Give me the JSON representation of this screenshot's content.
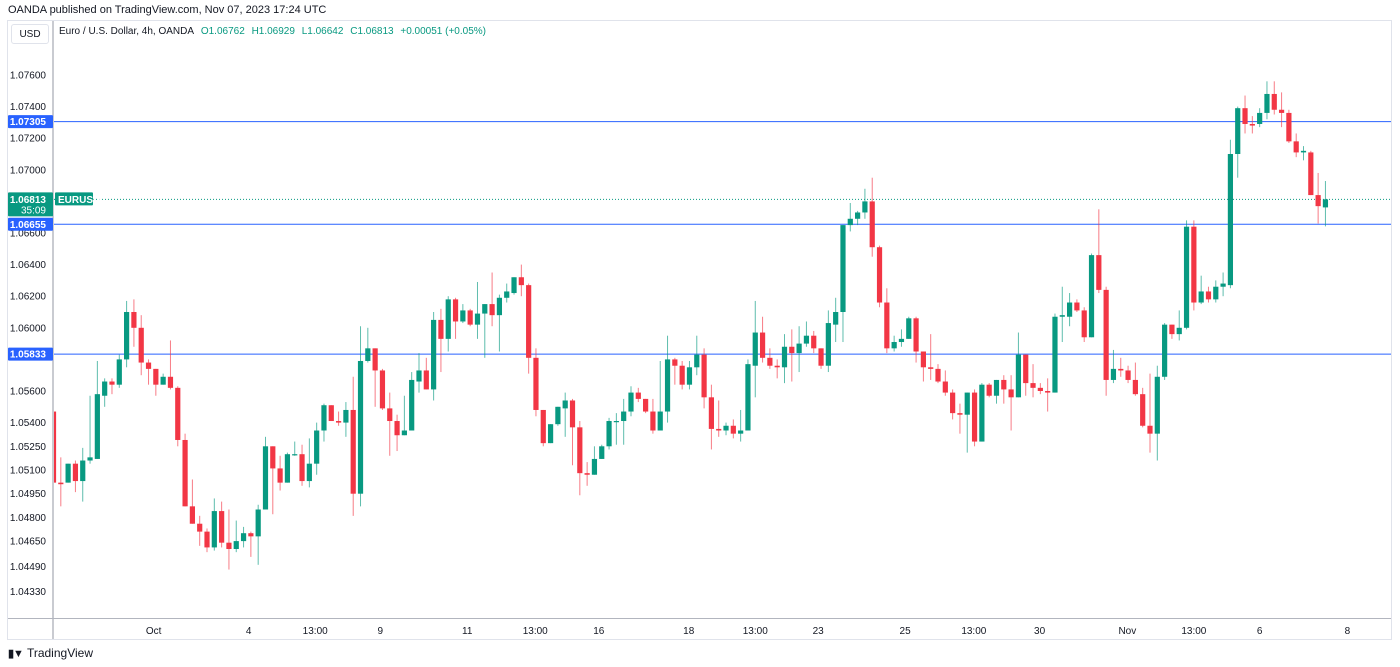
{
  "header": {
    "published": "OANDA published on TradingView.com, Nov 07, 2023 17:24 UTC",
    "currency_button": "USD",
    "symbol_title": "Euro / U.S. Dollar, 4h, OANDA",
    "open": "O1.06762",
    "high": "H1.06929",
    "low": "L1.06642",
    "close": "C1.06813",
    "change": "+0.00051 (+0.05%)"
  },
  "footer": {
    "brand": "TradingView",
    "logo_mark": "17"
  },
  "colors": {
    "up": "#089981",
    "down": "#F23645",
    "level_line": "#2962FF",
    "label_bg": "#2962FF",
    "price_label_bg": "#089981"
  },
  "chart_data": {
    "type": "candlestick",
    "symbol": "EURUSD",
    "interval": "4h",
    "ylim": [
      1.042,
      1.0775
    ],
    "y_ticks": [
      "1.07600",
      "1.07400",
      "1.07200",
      "1.07000",
      "1.06600",
      "1.06400",
      "1.06200",
      "1.06000",
      "1.05600",
      "1.05400",
      "1.05250",
      "1.05100",
      "1.04950",
      "1.04800",
      "1.04650",
      "1.04490",
      "1.04330"
    ],
    "x_ticks": [
      {
        "label": "Oct",
        "at": 13.7
      },
      {
        "label": "4",
        "at": 26.7
      },
      {
        "label": "13:00",
        "at": 35.8
      },
      {
        "label": "9",
        "at": 44.7
      },
      {
        "label": "11",
        "at": 56.6
      },
      {
        "label": "13:00",
        "at": 65.9
      },
      {
        "label": "16",
        "at": 74.6
      },
      {
        "label": "18",
        "at": 86.9
      },
      {
        "label": "13:00",
        "at": 96
      },
      {
        "label": "23",
        "at": 104.6
      },
      {
        "label": "25",
        "at": 116.5
      },
      {
        "label": "13:00",
        "at": 125.9
      },
      {
        "label": "30",
        "at": 134.9
      },
      {
        "label": "Nov",
        "at": 146.9
      },
      {
        "label": "13:00",
        "at": 156
      },
      {
        "label": "6",
        "at": 165
      },
      {
        "label": "8",
        "at": 177
      }
    ],
    "horizontal_levels": [
      {
        "label": "1.07305",
        "value": 1.07305
      },
      {
        "label": "1.06655",
        "value": 1.06655
      },
      {
        "label": "1.05833",
        "value": 1.05833
      }
    ],
    "last_price": {
      "label": "1.06813",
      "value": 1.06813,
      "countdown": "35:09",
      "tag": "EURUSD"
    },
    "ohlc": [
      [
        1.0547,
        1.0547,
        1.0502,
        1.0502
      ],
      [
        1.0502,
        1.0518,
        1.0487,
        1.0501
      ],
      [
        1.0502,
        1.0514,
        1.0502,
        1.0514
      ],
      [
        1.0514,
        1.0516,
        1.0496,
        1.0503
      ],
      [
        1.0503,
        1.0524,
        1.049,
        1.0516
      ],
      [
        1.0516,
        1.0557,
        1.0514,
        1.0518
      ],
      [
        1.0517,
        1.0579,
        1.0517,
        1.0558
      ],
      [
        1.0557,
        1.0568,
        1.055,
        1.0566
      ],
      [
        1.0566,
        1.0568,
        1.0558,
        1.0564
      ],
      [
        1.0564,
        1.0583,
        1.0562,
        1.058
      ],
      [
        1.058,
        1.0617,
        1.0575,
        1.061
      ],
      [
        1.061,
        1.0618,
        1.0588,
        1.06
      ],
      [
        1.06,
        1.0608,
        1.057,
        1.0578
      ],
      [
        1.0578,
        1.058,
        1.0564,
        1.0574
      ],
      [
        1.0574,
        1.0574,
        1.0557,
        1.0564
      ],
      [
        1.0564,
        1.0571,
        1.0564,
        1.0569
      ],
      [
        1.0569,
        1.0592,
        1.0561,
        1.0562
      ],
      [
        1.0562,
        1.0563,
        1.0525,
        1.0529
      ],
      [
        1.0529,
        1.0533,
        1.0487,
        1.0487
      ],
      [
        1.0487,
        1.0504,
        1.0476,
        1.0476
      ],
      [
        1.0476,
        1.0481,
        1.0462,
        1.0471
      ],
      [
        1.0471,
        1.0473,
        1.0458,
        1.0461
      ],
      [
        1.0461,
        1.0492,
        1.0459,
        1.0484
      ],
      [
        1.0484,
        1.049,
        1.0461,
        1.0464
      ],
      [
        1.0464,
        1.0485,
        1.0447,
        1.046
      ],
      [
        1.046,
        1.0478,
        1.0458,
        1.0465
      ],
      [
        1.0465,
        1.0474,
        1.0461,
        1.047
      ],
      [
        1.047,
        1.0471,
        1.0455,
        1.0468
      ],
      [
        1.0468,
        1.0488,
        1.045,
        1.0485
      ],
      [
        1.0485,
        1.0531,
        1.0485,
        1.0525
      ],
      [
        1.0525,
        1.0525,
        1.0482,
        1.0511
      ],
      [
        1.0511,
        1.0519,
        1.0497,
        1.0502
      ],
      [
        1.0502,
        1.0521,
        1.0502,
        1.052
      ],
      [
        1.052,
        1.0528,
        1.0519,
        1.052
      ],
      [
        1.052,
        1.0526,
        1.05,
        1.0503
      ],
      [
        1.0503,
        1.053,
        1.0499,
        1.0514
      ],
      [
        1.0514,
        1.054,
        1.0507,
        1.0535
      ],
      [
        1.0535,
        1.0552,
        1.0528,
        1.0551
      ],
      [
        1.0551,
        1.0551,
        1.0541,
        1.0541
      ],
      [
        1.0541,
        1.0547,
        1.0538,
        1.054
      ],
      [
        1.054,
        1.0553,
        1.0531,
        1.0548
      ],
      [
        1.0548,
        1.0569,
        1.0481,
        1.0495
      ],
      [
        1.0495,
        1.0601,
        1.0487,
        1.0579
      ],
      [
        1.0579,
        1.06,
        1.0578,
        1.0587
      ],
      [
        1.0587,
        1.0587,
        1.055,
        1.0573
      ],
      [
        1.0573,
        1.0574,
        1.0548,
        1.0549
      ],
      [
        1.0549,
        1.0559,
        1.0519,
        1.0541
      ],
      [
        1.0541,
        1.0545,
        1.0522,
        1.0532
      ],
      [
        1.0532,
        1.0557,
        1.0532,
        1.0535
      ],
      [
        1.0535,
        1.0572,
        1.0535,
        1.0567
      ],
      [
        1.0566,
        1.0584,
        1.0559,
        1.0573
      ],
      [
        1.0573,
        1.0581,
        1.0561,
        1.0561
      ],
      [
        1.0561,
        1.061,
        1.0554,
        1.0605
      ],
      [
        1.0605,
        1.0612,
        1.0572,
        1.0593
      ],
      [
        1.0593,
        1.062,
        1.0585,
        1.0618
      ],
      [
        1.0618,
        1.0619,
        1.0593,
        1.0604
      ],
      [
        1.0604,
        1.0615,
        1.0603,
        1.0611
      ],
      [
        1.0611,
        1.0612,
        1.0601,
        1.0602
      ],
      [
        1.0602,
        1.0629,
        1.0593,
        1.0609
      ],
      [
        1.0609,
        1.0615,
        1.0581,
        1.0615
      ],
      [
        1.0615,
        1.0635,
        1.0601,
        1.0608
      ],
      [
        1.0608,
        1.0621,
        1.0585,
        1.0619
      ],
      [
        1.0619,
        1.0628,
        1.0616,
        1.0623
      ],
      [
        1.0622,
        1.0632,
        1.0621,
        1.0632
      ],
      [
        1.0632,
        1.064,
        1.062,
        1.0627
      ],
      [
        1.0627,
        1.0628,
        1.0571,
        1.0581
      ],
      [
        1.0581,
        1.0587,
        1.0544,
        1.0548
      ],
      [
        1.0548,
        1.0548,
        1.0525,
        1.0527
      ],
      [
        1.0527,
        1.0539,
        1.0527,
        1.0539
      ],
      [
        1.0539,
        1.055,
        1.0538,
        1.055
      ],
      [
        1.0549,
        1.0559,
        1.0531,
        1.0554
      ],
      [
        1.0554,
        1.0555,
        1.0513,
        1.0537
      ],
      [
        1.0537,
        1.0541,
        1.0494,
        1.0508
      ],
      [
        1.0508,
        1.0515,
        1.05,
        1.0507
      ],
      [
        1.0507,
        1.0525,
        1.0507,
        1.0517
      ],
      [
        1.0517,
        1.0526,
        1.0517,
        1.0525
      ],
      [
        1.0525,
        1.0543,
        1.0523,
        1.0541
      ],
      [
        1.0541,
        1.0546,
        1.0526,
        1.0541
      ],
      [
        1.0541,
        1.0555,
        1.0526,
        1.0547
      ],
      [
        1.0547,
        1.0563,
        1.0544,
        1.0559
      ],
      [
        1.0559,
        1.0562,
        1.0553,
        1.0555
      ],
      [
        1.0555,
        1.0555,
        1.0546,
        1.0547
      ],
      [
        1.0547,
        1.0555,
        1.0533,
        1.0535
      ],
      [
        1.0535,
        1.0579,
        1.0535,
        1.0547
      ],
      [
        1.0547,
        1.0595,
        1.054,
        1.058
      ],
      [
        1.058,
        1.0581,
        1.0564,
        1.0576
      ],
      [
        1.0576,
        1.0579,
        1.0561,
        1.0564
      ],
      [
        1.0564,
        1.0579,
        1.0561,
        1.0575
      ],
      [
        1.0575,
        1.0595,
        1.057,
        1.0583
      ],
      [
        1.0583,
        1.0587,
        1.0549,
        1.0556
      ],
      [
        1.0556,
        1.0564,
        1.0523,
        1.0536
      ],
      [
        1.0536,
        1.0554,
        1.0531,
        1.0535
      ],
      [
        1.0535,
        1.054,
        1.0532,
        1.0538
      ],
      [
        1.0538,
        1.0542,
        1.053,
        1.0533
      ],
      [
        1.0533,
        1.0548,
        1.0528,
        1.0535
      ],
      [
        1.0535,
        1.058,
        1.0535,
        1.0577
      ],
      [
        1.0576,
        1.0617,
        1.0556,
        1.0597
      ],
      [
        1.0597,
        1.0607,
        1.0578,
        1.0581
      ],
      [
        1.0581,
        1.0587,
        1.0574,
        1.0576
      ],
      [
        1.0576,
        1.058,
        1.0568,
        1.0575
      ],
      [
        1.0575,
        1.0596,
        1.0565,
        1.0588
      ],
      [
        1.0588,
        1.0599,
        1.0566,
        1.0584
      ],
      [
        1.0584,
        1.0601,
        1.0572,
        1.059
      ],
      [
        1.059,
        1.0604,
        1.0588,
        1.0595
      ],
      [
        1.0595,
        1.0598,
        1.0584,
        1.0587
      ],
      [
        1.0587,
        1.0587,
        1.0574,
        1.0576
      ],
      [
        1.0576,
        1.0611,
        1.0572,
        1.0603
      ],
      [
        1.0602,
        1.0619,
        1.0591,
        1.061
      ],
      [
        1.061,
        1.0665,
        1.0591,
        1.0665
      ],
      [
        1.0665,
        1.0679,
        1.0661,
        1.0669
      ],
      [
        1.0669,
        1.0674,
        1.0665,
        1.0673
      ],
      [
        1.0673,
        1.0688,
        1.0669,
        1.068
      ],
      [
        1.068,
        1.0695,
        1.0645,
        1.0651
      ],
      [
        1.0651,
        1.0652,
        1.0613,
        1.0616
      ],
      [
        1.0616,
        1.0625,
        1.0584,
        1.0587
      ],
      [
        1.0587,
        1.0595,
        1.0585,
        1.0591
      ],
      [
        1.0591,
        1.0599,
        1.0588,
        1.0593
      ],
      [
        1.0593,
        1.0607,
        1.0593,
        1.0606
      ],
      [
        1.0606,
        1.0607,
        1.0578,
        1.0585
      ],
      [
        1.0585,
        1.0585,
        1.0566,
        1.0575
      ],
      [
        1.0575,
        1.0596,
        1.0567,
        1.0574
      ],
      [
        1.0574,
        1.0577,
        1.0565,
        1.0566
      ],
      [
        1.0566,
        1.0573,
        1.0557,
        1.0559
      ],
      [
        1.0559,
        1.0561,
        1.0542,
        1.0546
      ],
      [
        1.0546,
        1.0552,
        1.0533,
        1.0545
      ],
      [
        1.0545,
        1.0559,
        1.0521,
        1.0559
      ],
      [
        1.0559,
        1.0561,
        1.0525,
        1.0528
      ],
      [
        1.0528,
        1.0565,
        1.0528,
        1.0564
      ],
      [
        1.0564,
        1.0565,
        1.0556,
        1.0557
      ],
      [
        1.0557,
        1.0567,
        1.0552,
        1.0567
      ],
      [
        1.0567,
        1.057,
        1.0552,
        1.0561
      ],
      [
        1.0561,
        1.057,
        1.0535,
        1.0556
      ],
      [
        1.0556,
        1.0597,
        1.0556,
        1.0583
      ],
      [
        1.0583,
        1.0583,
        1.0557,
        1.0565
      ],
      [
        1.0565,
        1.0577,
        1.0556,
        1.0562
      ],
      [
        1.0562,
        1.0565,
        1.0558,
        1.056
      ],
      [
        1.056,
        1.0568,
        1.0547,
        1.0559
      ],
      [
        1.0559,
        1.0609,
        1.0559,
        1.0607
      ],
      [
        1.0607,
        1.0626,
        1.0591,
        1.0608
      ],
      [
        1.0607,
        1.0622,
        1.0601,
        1.0616
      ],
      [
        1.0616,
        1.0618,
        1.061,
        1.0611
      ],
      [
        1.0611,
        1.0613,
        1.0591,
        1.0594
      ],
      [
        1.0594,
        1.0647,
        1.0594,
        1.0646
      ],
      [
        1.0646,
        1.0675,
        1.0622,
        1.0624
      ],
      [
        1.0624,
        1.0626,
        1.0557,
        1.0567
      ],
      [
        1.0567,
        1.0586,
        1.0565,
        1.0574
      ],
      [
        1.0574,
        1.0581,
        1.0569,
        1.0573
      ],
      [
        1.0573,
        1.0576,
        1.0565,
        1.0567
      ],
      [
        1.0567,
        1.0578,
        1.0557,
        1.0558
      ],
      [
        1.0558,
        1.0562,
        1.0537,
        1.0538
      ],
      [
        1.0538,
        1.0571,
        1.0521,
        1.0533
      ],
      [
        1.0533,
        1.0576,
        1.0516,
        1.0569
      ],
      [
        1.0569,
        1.0603,
        1.0567,
        1.0602
      ],
      [
        1.0602,
        1.0602,
        1.0593,
        1.0596
      ],
      [
        1.0596,
        1.0611,
        1.0592,
        1.06
      ],
      [
        1.06,
        1.0668,
        1.0599,
        1.0664
      ],
      [
        1.0664,
        1.0668,
        1.0611,
        1.0616
      ],
      [
        1.0616,
        1.0633,
        1.0615,
        1.0623
      ],
      [
        1.0623,
        1.0626,
        1.0616,
        1.0618
      ],
      [
        1.0618,
        1.063,
        1.0616,
        1.0626
      ],
      [
        1.0626,
        1.0635,
        1.062,
        1.0628
      ],
      [
        1.0627,
        1.0719,
        1.0625,
        1.071
      ],
      [
        1.071,
        1.074,
        1.0695,
        1.0739
      ],
      [
        1.0739,
        1.0747,
        1.0723,
        1.0729
      ],
      [
        1.0729,
        1.0734,
        1.0723,
        1.0728
      ],
      [
        1.0729,
        1.0739,
        1.0727,
        1.0736
      ],
      [
        1.0736,
        1.0756,
        1.0732,
        1.0748
      ],
      [
        1.0748,
        1.0756,
        1.0735,
        1.0738
      ],
      [
        1.0738,
        1.0749,
        1.0727,
        1.0736
      ],
      [
        1.0736,
        1.0738,
        1.0717,
        1.0718
      ],
      [
        1.0718,
        1.0723,
        1.0708,
        1.0711
      ],
      [
        1.0711,
        1.0715,
        1.0706,
        1.0712
      ],
      [
        1.0711,
        1.0712,
        1.0684,
        1.0684
      ],
      [
        1.0684,
        1.0698,
        1.0666,
        1.0677
      ],
      [
        1.06762,
        1.06929,
        1.06642,
        1.06813
      ]
    ]
  }
}
